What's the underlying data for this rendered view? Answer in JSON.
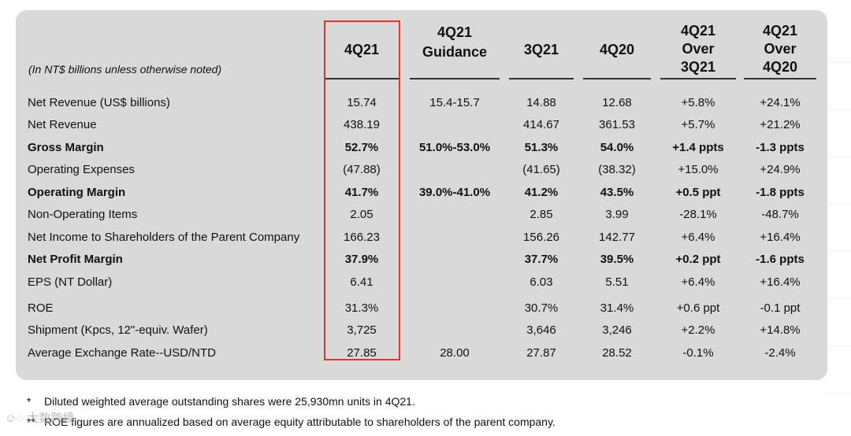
{
  "table": {
    "unit_note": "(In NT$ billions unless otherwise noted)",
    "headers": [
      {
        "lines": [
          "4Q21"
        ]
      },
      {
        "lines": [
          "4Q21",
          "Guidance"
        ]
      },
      {
        "lines": [
          "3Q21"
        ]
      },
      {
        "lines": [
          "4Q20"
        ]
      },
      {
        "lines": [
          "4Q21",
          "Over",
          "3Q21"
        ]
      },
      {
        "lines": [
          "4Q21",
          "Over",
          "4Q20"
        ]
      }
    ],
    "rows": [
      {
        "label": "Net Revenue (US$ billions)",
        "bold": false,
        "values": [
          "15.74",
          "15.4-15.7",
          "14.88",
          "12.68",
          "+5.8%",
          "+24.1%"
        ]
      },
      {
        "label": "Net Revenue",
        "bold": false,
        "values": [
          "438.19",
          "",
          "414.67",
          "361.53",
          "+5.7%",
          "+21.2%"
        ]
      },
      {
        "label": "Gross Margin",
        "bold": true,
        "values": [
          "52.7%",
          "51.0%-53.0%",
          "51.3%",
          "54.0%",
          "+1.4 ppts",
          "-1.3 ppts"
        ]
      },
      {
        "label": "Operating Expenses",
        "bold": false,
        "values": [
          "(47.88)",
          "",
          "(41.65)",
          "(38.32)",
          "+15.0%",
          "+24.9%"
        ]
      },
      {
        "label": "Operating Margin",
        "bold": true,
        "values": [
          "41.7%",
          "39.0%-41.0%",
          "41.2%",
          "43.5%",
          "+0.5 ppt",
          "-1.8 ppts"
        ]
      },
      {
        "label": "Non-Operating Items",
        "bold": false,
        "values": [
          "2.05",
          "",
          "2.85",
          "3.99",
          "-28.1%",
          "-48.7%"
        ]
      },
      {
        "label": "Net Income to Shareholders of the Parent Company",
        "bold": false,
        "values": [
          "166.23",
          "",
          "156.26",
          "142.77",
          "+6.4%",
          "+16.4%"
        ]
      },
      {
        "label": "Net Profit Margin",
        "bold": true,
        "values": [
          "37.9%",
          "",
          "37.7%",
          "39.5%",
          "+0.2 ppt",
          "-1.6 ppts"
        ]
      },
      {
        "label": "EPS (NT Dollar)",
        "bold": false,
        "values": [
          "6.41",
          "",
          "6.03",
          "5.51",
          "+6.4%",
          "+16.4%"
        ]
      },
      {
        "label": "ROE",
        "bold": false,
        "values": [
          "31.3%",
          "",
          "30.7%",
          "31.4%",
          "+0.6 ppt",
          "-0.1 ppt"
        ]
      },
      {
        "label": "Shipment (Kpcs, 12\"-equiv. Wafer)",
        "bold": false,
        "values": [
          "3,725",
          "",
          "3,646",
          "3,246",
          "+2.2%",
          "+14.8%"
        ]
      },
      {
        "label": "Average Exchange Rate--USD/NTD",
        "bold": false,
        "values": [
          "27.85",
          "28.00",
          "27.87",
          "28.52",
          "-0.1%",
          "-2.4%"
        ]
      }
    ]
  },
  "footnotes": [
    {
      "marker": "*",
      "text": "Diluted weighted average outstanding shares were 25,930mn units in 4Q21."
    },
    {
      "marker": "**",
      "text": "ROE figures are annualized based on average equity attributable to shareholders of the parent company."
    }
  ],
  "watermark": "大数跨境",
  "colors": {
    "panel": "#d9d9d9",
    "highlight": "#e0352b"
  }
}
